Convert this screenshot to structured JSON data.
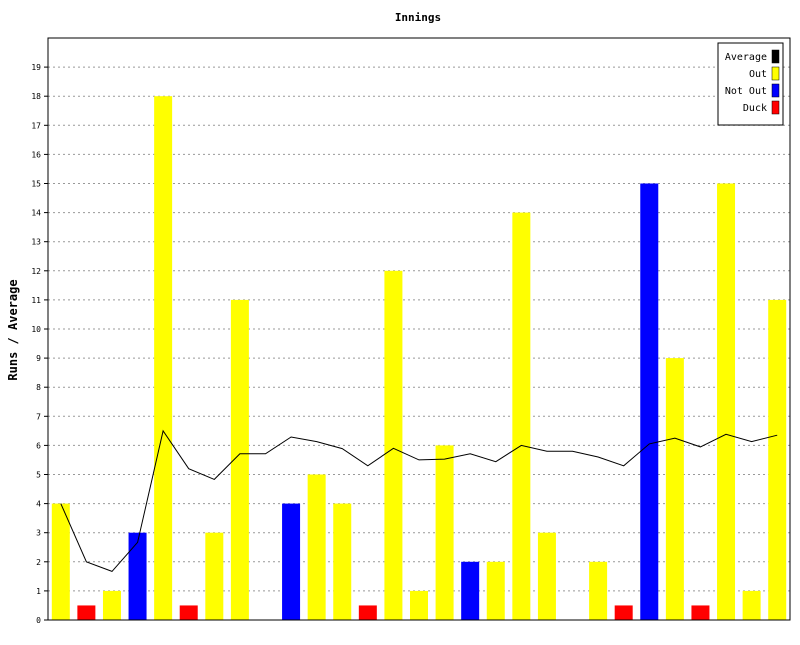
{
  "chart_data": {
    "type": "bar",
    "title": "Innings",
    "xlabel": "",
    "ylabel": "Runs / Average",
    "ylim": [
      0,
      20
    ],
    "yticks": [
      0,
      1,
      2,
      3,
      4,
      5,
      6,
      7,
      8,
      9,
      10,
      11,
      12,
      13,
      14,
      15,
      16,
      17,
      18,
      19
    ],
    "grid": true,
    "legend_position": "top-right",
    "legend": [
      {
        "name": "Average",
        "color": "#000000"
      },
      {
        "name": "Out",
        "color": "#ffff00"
      },
      {
        "name": "Not Out",
        "color": "#0000ff"
      },
      {
        "name": "Duck",
        "color": "#ff0000"
      }
    ],
    "innings": [
      {
        "runs": 4,
        "status": "Out"
      },
      {
        "runs": 0,
        "status": "Duck"
      },
      {
        "runs": 1,
        "status": "Out"
      },
      {
        "runs": 3,
        "status": "Not Out"
      },
      {
        "runs": 18,
        "status": "Out"
      },
      {
        "runs": 0,
        "status": "Duck"
      },
      {
        "runs": 3,
        "status": "Out"
      },
      {
        "runs": 11,
        "status": "Out"
      },
      {
        "runs": 0,
        "status": "Out"
      },
      {
        "runs": 4,
        "status": "Not Out"
      },
      {
        "runs": 5,
        "status": "Out"
      },
      {
        "runs": 4,
        "status": "Out"
      },
      {
        "runs": 0,
        "status": "Duck"
      },
      {
        "runs": 12,
        "status": "Out"
      },
      {
        "runs": 1,
        "status": "Out"
      },
      {
        "runs": 6,
        "status": "Out"
      },
      {
        "runs": 2,
        "status": "Not Out"
      },
      {
        "runs": 2,
        "status": "Out"
      },
      {
        "runs": 14,
        "status": "Out"
      },
      {
        "runs": 3,
        "status": "Out"
      },
      {
        "runs": 0,
        "status": "Out"
      },
      {
        "runs": 2,
        "status": "Out"
      },
      {
        "runs": 0,
        "status": "Duck"
      },
      {
        "runs": 15,
        "status": "Not Out"
      },
      {
        "runs": 9,
        "status": "Out"
      },
      {
        "runs": 0,
        "status": "Duck"
      },
      {
        "runs": 15,
        "status": "Out"
      },
      {
        "runs": 1,
        "status": "Out"
      },
      {
        "runs": 11,
        "status": "Out"
      }
    ],
    "average": [
      4.0,
      2.0,
      1.67,
      2.67,
      6.5,
      5.2,
      4.83,
      5.71,
      5.71,
      6.29,
      6.13,
      5.89,
      5.3,
      5.9,
      5.5,
      5.53,
      5.71,
      5.44,
      6.0,
      5.8,
      5.8,
      5.6,
      5.3,
      6.05,
      6.25,
      5.95,
      6.38,
      6.13,
      6.35
    ]
  }
}
